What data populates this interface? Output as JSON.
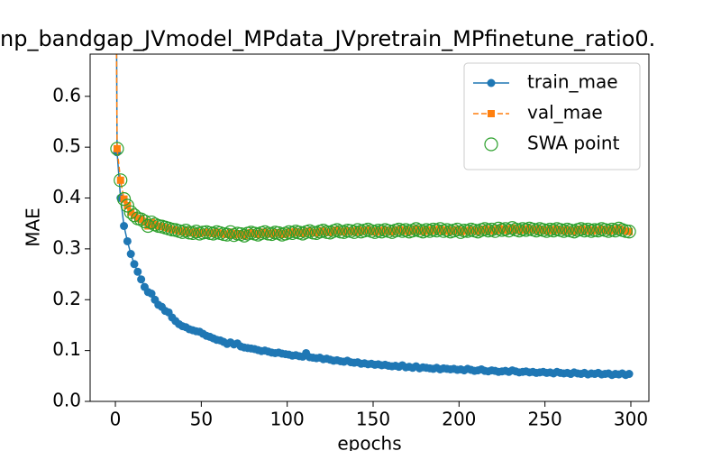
{
  "chart_data": {
    "type": "line",
    "title": "np_bandgap_JVmodel_MPdata_JVpretrain_MPfinetune_ratio0.",
    "xlabel": "epochs",
    "ylabel": "MAE",
    "xlim": [
      -14.7,
      310.5
    ],
    "ylim": [
      0,
      0.683
    ],
    "xticks": [
      0,
      50,
      100,
      150,
      200,
      250,
      300
    ],
    "yticks": [
      {
        "value": 0,
        "label": "0.0"
      },
      0.1,
      0.2,
      0.3,
      0.4,
      0.5,
      0.6
    ],
    "legend": "upper right",
    "x": [
      0,
      1,
      3,
      5,
      7,
      9,
      11,
      13,
      15,
      17,
      19,
      21,
      23,
      25,
      27,
      29,
      31,
      33,
      35,
      37,
      39,
      41,
      43,
      45,
      47,
      49,
      51,
      53,
      55,
      57,
      59,
      61,
      63,
      65,
      67,
      69,
      71,
      73,
      75,
      77,
      79,
      81,
      83,
      85,
      87,
      89,
      91,
      93,
      95,
      97,
      99,
      101,
      103,
      105,
      107,
      109,
      111,
      113,
      115,
      117,
      119,
      121,
      123,
      125,
      127,
      129,
      131,
      133,
      135,
      137,
      139,
      141,
      143,
      145,
      147,
      149,
      151,
      153,
      155,
      157,
      159,
      161,
      163,
      165,
      167,
      169,
      171,
      173,
      175,
      177,
      179,
      181,
      183,
      185,
      187,
      189,
      191,
      193,
      195,
      197,
      199,
      201,
      203,
      205,
      207,
      209,
      211,
      213,
      215,
      217,
      219,
      221,
      223,
      225,
      227,
      229,
      231,
      233,
      235,
      237,
      239,
      241,
      243,
      245,
      247,
      249,
      251,
      253,
      255,
      257,
      259,
      261,
      263,
      265,
      267,
      269,
      271,
      273,
      275,
      277,
      279,
      281,
      283,
      285,
      287,
      289,
      291,
      293,
      295,
      297,
      299
    ],
    "series": [
      {
        "name": "train_mae",
        "color": "#1f77b4",
        "linestyle": "solid",
        "marker": "circle",
        "values": [
          1.2,
          0.49,
          0.4,
          0.345,
          0.315,
          0.29,
          0.27,
          0.255,
          0.24,
          0.225,
          0.215,
          0.212,
          0.2,
          0.19,
          0.186,
          0.178,
          0.175,
          0.165,
          0.158,
          0.152,
          0.148,
          0.146,
          0.142,
          0.14,
          0.138,
          0.137,
          0.133,
          0.129,
          0.127,
          0.124,
          0.121,
          0.12,
          0.117,
          0.113,
          0.116,
          0.112,
          0.114,
          0.108,
          0.106,
          0.105,
          0.104,
          0.103,
          0.101,
          0.099,
          0.1,
          0.098,
          0.096,
          0.095,
          0.096,
          0.094,
          0.093,
          0.092,
          0.09,
          0.091,
          0.089,
          0.088,
          0.095,
          0.087,
          0.086,
          0.085,
          0.086,
          0.083,
          0.084,
          0.082,
          0.08,
          0.081,
          0.079,
          0.078,
          0.08,
          0.077,
          0.076,
          0.077,
          0.074,
          0.075,
          0.073,
          0.074,
          0.072,
          0.073,
          0.071,
          0.072,
          0.07,
          0.069,
          0.07,
          0.068,
          0.071,
          0.067,
          0.068,
          0.066,
          0.069,
          0.065,
          0.067,
          0.066,
          0.065,
          0.064,
          0.066,
          0.063,
          0.065,
          0.064,
          0.063,
          0.064,
          0.062,
          0.063,
          0.061,
          0.064,
          0.062,
          0.06,
          0.061,
          0.063,
          0.06,
          0.059,
          0.061,
          0.06,
          0.058,
          0.059,
          0.06,
          0.058,
          0.061,
          0.059,
          0.057,
          0.058,
          0.059,
          0.057,
          0.058,
          0.056,
          0.057,
          0.058,
          0.056,
          0.057,
          0.055,
          0.058,
          0.056,
          0.055,
          0.056,
          0.054,
          0.057,
          0.055,
          0.054,
          0.056,
          0.053,
          0.055,
          0.054,
          0.056,
          0.053,
          0.054,
          0.055,
          0.052,
          0.054,
          0.053,
          0.055,
          0.052,
          0.054
        ]
      },
      {
        "name": "val_mae",
        "color": "#ff7f0e",
        "linestyle": "dashed",
        "marker": "square",
        "values": [
          1.1,
          0.497,
          0.435,
          0.398,
          0.385,
          0.372,
          0.366,
          0.36,
          0.358,
          0.354,
          0.345,
          0.352,
          0.348,
          0.345,
          0.344,
          0.342,
          0.34,
          0.338,
          0.337,
          0.335,
          0.333,
          0.336,
          0.332,
          0.331,
          0.334,
          0.33,
          0.332,
          0.333,
          0.331,
          0.33,
          0.333,
          0.331,
          0.329,
          0.328,
          0.333,
          0.327,
          0.33,
          0.329,
          0.326,
          0.33,
          0.332,
          0.33,
          0.328,
          0.331,
          0.333,
          0.33,
          0.329,
          0.332,
          0.331,
          0.328,
          0.33,
          0.333,
          0.331,
          0.334,
          0.332,
          0.33,
          0.333,
          0.335,
          0.332,
          0.331,
          0.334,
          0.336,
          0.333,
          0.332,
          0.335,
          0.337,
          0.334,
          0.333,
          0.336,
          0.335,
          0.333,
          0.337,
          0.334,
          0.336,
          0.338,
          0.335,
          0.333,
          0.336,
          0.334,
          0.337,
          0.335,
          0.333,
          0.336,
          0.338,
          0.335,
          0.337,
          0.334,
          0.336,
          0.339,
          0.336,
          0.334,
          0.337,
          0.335,
          0.338,
          0.336,
          0.339,
          0.335,
          0.337,
          0.334,
          0.336,
          0.338,
          0.333,
          0.336,
          0.335,
          0.338,
          0.336,
          0.334,
          0.337,
          0.339,
          0.336,
          0.338,
          0.335,
          0.34,
          0.337,
          0.339,
          0.336,
          0.341,
          0.338,
          0.336,
          0.339,
          0.337,
          0.34,
          0.338,
          0.336,
          0.339,
          0.337,
          0.335,
          0.338,
          0.336,
          0.339,
          0.337,
          0.335,
          0.338,
          0.336,
          0.334,
          0.337,
          0.339,
          0.336,
          0.338,
          0.335,
          0.337,
          0.336,
          0.339,
          0.337,
          0.335,
          0.338,
          0.336,
          0.34,
          0.337,
          0.335,
          0.334
        ]
      },
      {
        "name": "SWA point",
        "color": "#2ca02c",
        "linestyle": "none",
        "marker": "open-circle",
        "values": [
          1.1,
          0.497,
          0.435,
          0.398,
          0.385,
          0.372,
          0.366,
          0.36,
          0.358,
          0.354,
          0.345,
          0.352,
          0.348,
          0.345,
          0.344,
          0.342,
          0.34,
          0.338,
          0.337,
          0.335,
          0.333,
          0.336,
          0.332,
          0.331,
          0.334,
          0.33,
          0.332,
          0.333,
          0.331,
          0.33,
          0.333,
          0.331,
          0.329,
          0.328,
          0.333,
          0.327,
          0.33,
          0.329,
          0.326,
          0.33,
          0.332,
          0.33,
          0.328,
          0.331,
          0.333,
          0.33,
          0.329,
          0.332,
          0.331,
          0.328,
          0.33,
          0.333,
          0.331,
          0.334,
          0.332,
          0.33,
          0.333,
          0.335,
          0.332,
          0.331,
          0.334,
          0.336,
          0.333,
          0.332,
          0.335,
          0.337,
          0.334,
          0.333,
          0.336,
          0.335,
          0.333,
          0.337,
          0.334,
          0.336,
          0.338,
          0.335,
          0.333,
          0.336,
          0.334,
          0.337,
          0.335,
          0.333,
          0.336,
          0.338,
          0.335,
          0.337,
          0.334,
          0.336,
          0.339,
          0.336,
          0.334,
          0.337,
          0.335,
          0.338,
          0.336,
          0.339,
          0.335,
          0.337,
          0.334,
          0.336,
          0.338,
          0.333,
          0.336,
          0.335,
          0.338,
          0.336,
          0.334,
          0.337,
          0.339,
          0.336,
          0.338,
          0.335,
          0.34,
          0.337,
          0.339,
          0.336,
          0.341,
          0.338,
          0.336,
          0.339,
          0.337,
          0.34,
          0.338,
          0.336,
          0.339,
          0.337,
          0.335,
          0.338,
          0.336,
          0.339,
          0.337,
          0.335,
          0.338,
          0.336,
          0.334,
          0.337,
          0.339,
          0.336,
          0.338,
          0.335,
          0.337,
          0.336,
          0.339,
          0.337,
          0.335,
          0.338,
          0.336,
          0.34,
          0.337,
          0.335,
          0.334
        ]
      }
    ]
  }
}
